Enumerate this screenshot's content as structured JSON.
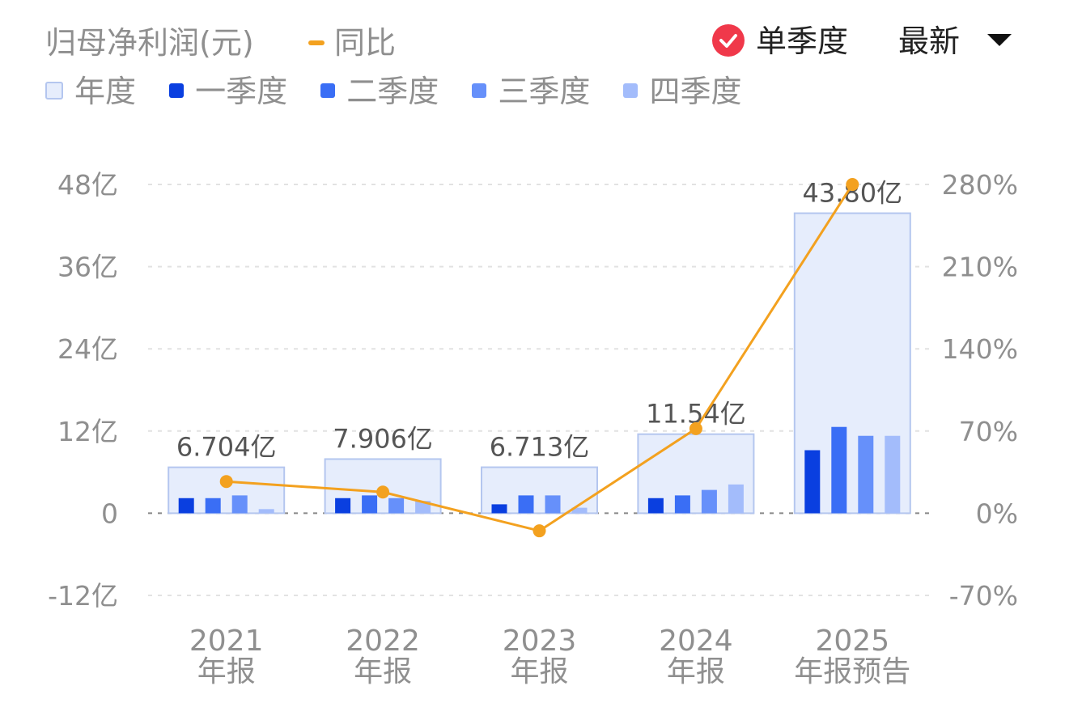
{
  "header": {
    "title": "归母净利润(元)",
    "yoy_label": "同比",
    "single_quarter_label": "单季度",
    "period_select_label": "最新"
  },
  "colors": {
    "annual": "#e6edfc",
    "annual_border": "#b4c6ef",
    "q1": "#0a3fe0",
    "q2": "#3a6ef5",
    "q3": "#6690fa",
    "q4": "#a3bcfb",
    "yoy_line": "#f3a11f",
    "check_badge": "#f0384a"
  },
  "legend": [
    {
      "label": "年度",
      "color_key": "annual"
    },
    {
      "label": "一季度",
      "color_key": "q1"
    },
    {
      "label": "二季度",
      "color_key": "q2"
    },
    {
      "label": "三季度",
      "color_key": "q3"
    },
    {
      "label": "四季度",
      "color_key": "q4"
    }
  ],
  "chart_data": {
    "type": "bar",
    "categories": [
      "2021\n年报",
      "2022\n年报",
      "2023\n年报",
      "2024\n年报",
      "2025\n年报预告"
    ],
    "annual_values": [
      6.704,
      7.906,
      6.713,
      11.54,
      43.8
    ],
    "annual_labels": [
      "6.704亿",
      "7.906亿",
      "6.713亿",
      "11.54亿",
      "43.80亿"
    ],
    "quarterly": {
      "q1": [
        2.2,
        2.2,
        1.3,
        2.2,
        9.2
      ],
      "q2": [
        2.2,
        2.6,
        2.6,
        2.6,
        12.6
      ],
      "q3": [
        2.6,
        2.2,
        2.6,
        3.4,
        11.3
      ],
      "q4": [
        0.6,
        1.8,
        0.8,
        4.2,
        11.3
      ]
    },
    "yoy_percent": [
      27,
      18,
      -15,
      72,
      280
    ],
    "y_left": {
      "min": -12,
      "max": 48,
      "ticks": [
        48,
        36,
        24,
        12,
        0,
        -12
      ],
      "tick_labels": [
        "48亿",
        "36亿",
        "24亿",
        "12亿",
        "0",
        "-12亿"
      ]
    },
    "y_right": {
      "min": -70,
      "max": 280,
      "ticks": [
        280,
        210,
        140,
        70,
        0,
        -70
      ],
      "tick_labels": [
        "280%",
        "210%",
        "140%",
        "70%",
        "0%",
        "-70%"
      ]
    },
    "unit": "亿",
    "grid": true
  }
}
